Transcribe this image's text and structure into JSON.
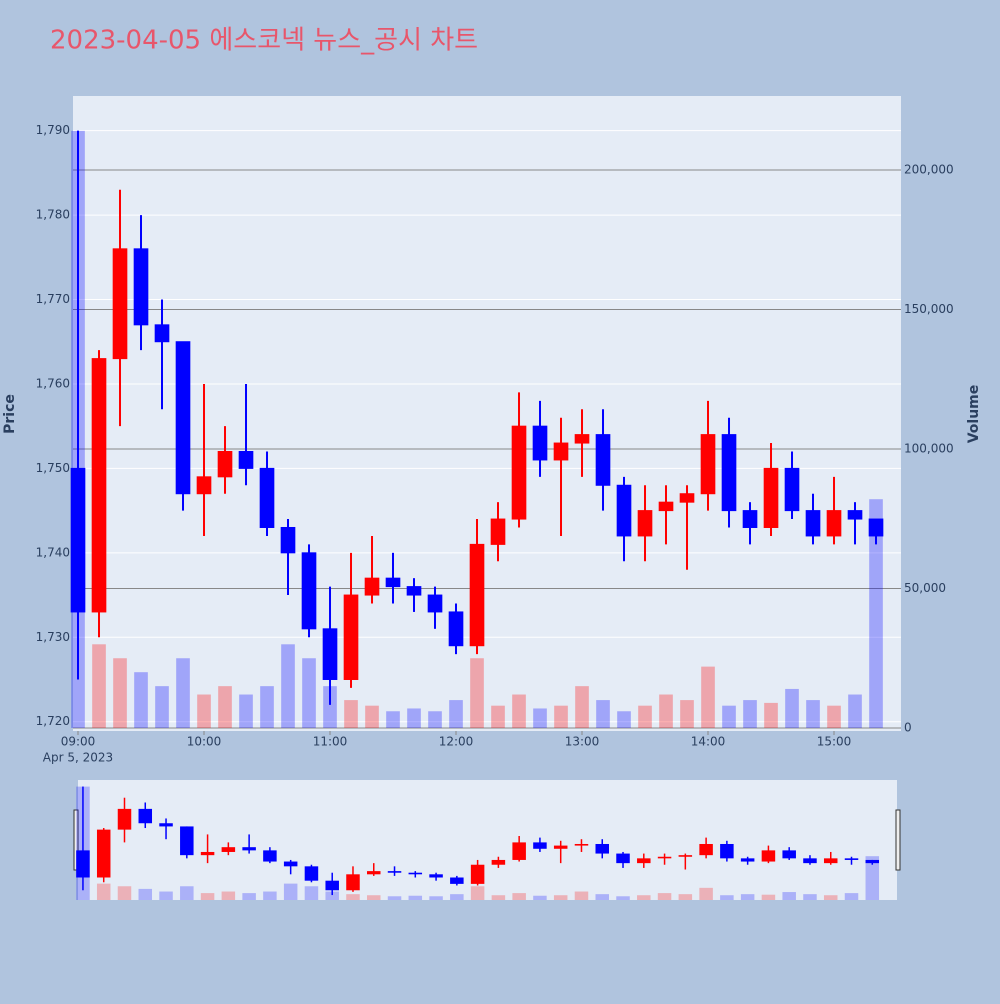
{
  "chart_data": {
    "type": "candlestick",
    "title": "2023-04-05 에스코넥 뉴스_공시 차트",
    "y_title": "Price",
    "y2_title": "Volume",
    "x_date_label": "Apr 5, 2023",
    "up_color": "#ff0000",
    "down_color": "#0000ff",
    "rangeslider": true,
    "x": [
      "2023-04-05 09:00",
      "2023-04-05 09:10",
      "2023-04-05 09:20",
      "2023-04-05 09:30",
      "2023-04-05 09:40",
      "2023-04-05 09:50",
      "2023-04-05 10:00",
      "2023-04-05 10:10",
      "2023-04-05 10:20",
      "2023-04-05 10:30",
      "2023-04-05 10:40",
      "2023-04-05 10:50",
      "2023-04-05 11:00",
      "2023-04-05 11:10",
      "2023-04-05 11:20",
      "2023-04-05 11:30",
      "2023-04-05 11:40",
      "2023-04-05 11:50",
      "2023-04-05 12:00",
      "2023-04-05 12:10",
      "2023-04-05 12:20",
      "2023-04-05 12:30",
      "2023-04-05 12:40",
      "2023-04-05 12:50",
      "2023-04-05 13:00",
      "2023-04-05 13:10",
      "2023-04-05 13:20",
      "2023-04-05 13:30",
      "2023-04-05 13:40",
      "2023-04-05 13:50",
      "2023-04-05 14:00",
      "2023-04-05 14:10",
      "2023-04-05 14:20",
      "2023-04-05 14:30",
      "2023-04-05 14:40",
      "2023-04-05 14:50",
      "2023-04-05 15:00",
      "2023-04-05 15:10",
      "2023-04-05 15:20"
    ],
    "open": [
      1750,
      1733,
      1763,
      1776,
      1767,
      1765,
      1747,
      1749,
      1752,
      1750,
      1743,
      1740,
      1731,
      1725,
      1735,
      1737,
      1736,
      1735,
      1733,
      1729,
      1741,
      1744,
      1755,
      1751,
      1753,
      1754,
      1748,
      1742,
      1745,
      1746,
      1747,
      1754,
      1745,
      1743,
      1750,
      1745,
      1742,
      1745,
      1744
    ],
    "high": [
      1790,
      1764,
      1783,
      1780,
      1770,
      1765,
      1760,
      1755,
      1760,
      1752,
      1744,
      1741,
      1736,
      1740,
      1742,
      1740,
      1737,
      1736,
      1734,
      1744,
      1746,
      1759,
      1758,
      1756,
      1757,
      1757,
      1749,
      1748,
      1748,
      1748,
      1758,
      1756,
      1746,
      1753,
      1752,
      1747,
      1749,
      1746,
      1744
    ],
    "low": [
      1725,
      1730,
      1755,
      1764,
      1757,
      1745,
      1742,
      1747,
      1748,
      1742,
      1735,
      1730,
      1722,
      1724,
      1734,
      1734,
      1733,
      1731,
      1728,
      1728,
      1739,
      1743,
      1749,
      1742,
      1749,
      1745,
      1739,
      1739,
      1741,
      1738,
      1745,
      1743,
      1741,
      1742,
      1744,
      1741,
      1741,
      1741,
      1741
    ],
    "close": [
      1733,
      1763,
      1776,
      1767,
      1765,
      1747,
      1749,
      1752,
      1750,
      1743,
      1740,
      1731,
      1725,
      1735,
      1737,
      1736,
      1735,
      1733,
      1729,
      1741,
      1744,
      1755,
      1751,
      1753,
      1754,
      1748,
      1742,
      1745,
      1746,
      1747,
      1754,
      1745,
      1743,
      1750,
      1745,
      1742,
      1745,
      1744,
      1742
    ],
    "volume": [
      214000,
      30000,
      25000,
      20000,
      15000,
      25000,
      12000,
      15000,
      12000,
      15000,
      30000,
      25000,
      15000,
      10000,
      8000,
      6000,
      7000,
      6000,
      10000,
      25000,
      8000,
      12000,
      7000,
      8000,
      15000,
      10000,
      6000,
      8000,
      12000,
      10000,
      22000,
      8000,
      10000,
      9000,
      14000,
      10000,
      8000,
      12000,
      82000
    ],
    "xlim": [
      "2023-04-05 08:57:37",
      "2023-04-05 15:31:54"
    ],
    "xticks": [
      {
        "value": "2023-04-05 09:00",
        "label": "09:00"
      },
      {
        "value": "2023-04-05 10:00",
        "label": "10:00"
      },
      {
        "value": "2023-04-05 11:00",
        "label": "11:00"
      },
      {
        "value": "2023-04-05 12:00",
        "label": "12:00"
      },
      {
        "value": "2023-04-05 13:00",
        "label": "13:00"
      },
      {
        "value": "2023-04-05 14:00",
        "label": "14:00"
      },
      {
        "value": "2023-04-05 15:00",
        "label": "15:00"
      }
    ],
    "ylim": [
      1718.9,
      1794.1
    ],
    "yticks": [
      {
        "value": 1720,
        "label": "1,720"
      },
      {
        "value": 1730,
        "label": "1,730"
      },
      {
        "value": 1740,
        "label": "1,740"
      },
      {
        "value": 1750,
        "label": "1,750"
      },
      {
        "value": 1760,
        "label": "1,760"
      },
      {
        "value": 1770,
        "label": "1,770"
      },
      {
        "value": 1780,
        "label": "1,780"
      },
      {
        "value": 1790,
        "label": "1,790"
      }
    ],
    "y2lim": [
      -1075,
      226500
    ],
    "y2ticks": [
      0,
      {
        "value": 50000,
        "label": "50,000"
      },
      {
        "value": 100000,
        "label": "100,000"
      },
      {
        "value": 150000,
        "label": "150,000"
      },
      {
        "value": 200000,
        "label": "200,000"
      }
    ]
  }
}
